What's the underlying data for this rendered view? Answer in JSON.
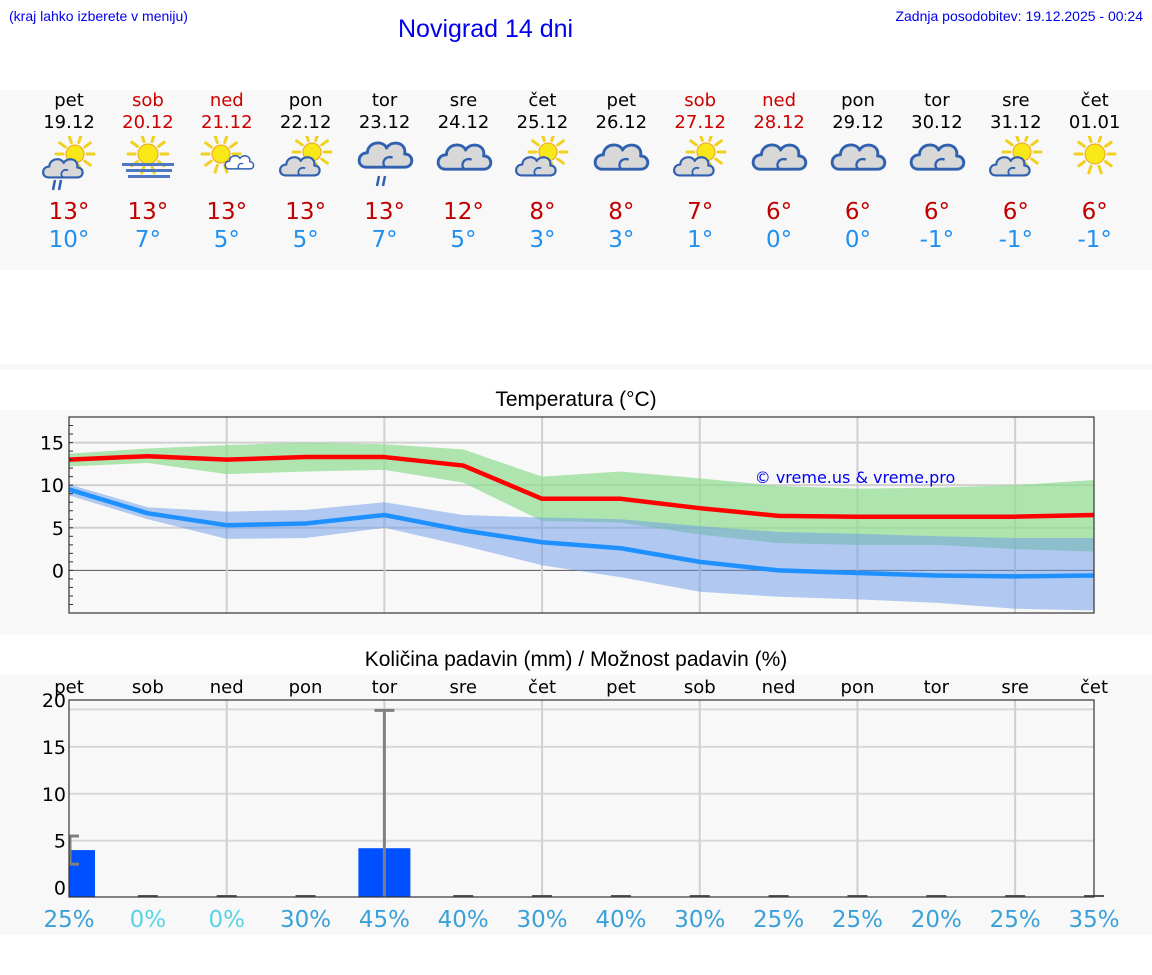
{
  "header": {
    "hint": "(kraj lahko izberete v meniju)",
    "title": "Novigrad 14 dni",
    "updated": "Zadnja posodobitev: 19.12.2025 - 00:24"
  },
  "days": [
    {
      "name": "pet",
      "date": "19.12",
      "weekend": false,
      "icon": "sun-cloud-rain-icon",
      "tmax": "13°",
      "tmin": "10°"
    },
    {
      "name": "sob",
      "date": "20.12",
      "weekend": true,
      "icon": "sun-fog-icon",
      "tmax": "13°",
      "tmin": "7°"
    },
    {
      "name": "ned",
      "date": "21.12",
      "weekend": true,
      "icon": "sun-small-cloud-icon",
      "tmax": "13°",
      "tmin": "5°"
    },
    {
      "name": "pon",
      "date": "22.12",
      "weekend": false,
      "icon": "sun-cloud-icon",
      "tmax": "13°",
      "tmin": "5°"
    },
    {
      "name": "tor",
      "date": "23.12",
      "weekend": false,
      "icon": "cloud-rain-icon",
      "tmax": "13°",
      "tmin": "7°"
    },
    {
      "name": "sre",
      "date": "24.12",
      "weekend": false,
      "icon": "cloud-icon",
      "tmax": "12°",
      "tmin": "5°"
    },
    {
      "name": "čet",
      "date": "25.12",
      "weekend": false,
      "icon": "sun-cloud-icon",
      "tmax": "8°",
      "tmin": "3°"
    },
    {
      "name": "pet",
      "date": "26.12",
      "weekend": false,
      "icon": "cloud-icon",
      "tmax": "8°",
      "tmin": "3°"
    },
    {
      "name": "sob",
      "date": "27.12",
      "weekend": true,
      "icon": "sun-cloud-icon",
      "tmax": "7°",
      "tmin": "1°"
    },
    {
      "name": "ned",
      "date": "28.12",
      "weekend": true,
      "icon": "cloud-icon",
      "tmax": "6°",
      "tmin": "0°"
    },
    {
      "name": "pon",
      "date": "29.12",
      "weekend": false,
      "icon": "cloud-icon",
      "tmax": "6°",
      "tmin": "0°"
    },
    {
      "name": "tor",
      "date": "30.12",
      "weekend": false,
      "icon": "cloud-icon",
      "tmax": "6°",
      "tmin": "-1°"
    },
    {
      "name": "sre",
      "date": "31.12",
      "weekend": false,
      "icon": "sun-cloud-icon",
      "tmax": "6°",
      "tmin": "-1°"
    },
    {
      "name": "čet",
      "date": "01.01",
      "weekend": false,
      "icon": "sun-icon",
      "tmax": "6°",
      "tmin": "-1°"
    }
  ],
  "colors": {
    "weekend": "#cc0000",
    "tmax": "#c00000",
    "tmin": "#2090f0",
    "max_line": "#ff0000",
    "min_line": "#1e90ff",
    "max_band": "#aee8ae",
    "min_band": "#b0c8f0",
    "precip_bar": "#0050ff",
    "precip_error": "#808080",
    "percent_low": "#5ad2e6",
    "percent": "#3aa0d8",
    "watermark": "#0000ee"
  },
  "chart_data": [
    {
      "type": "line",
      "title": "Temperatura (°C)",
      "xlabel": "",
      "ylabel": "",
      "ylim": [
        -5,
        18
      ],
      "yticks": [
        0,
        5,
        10,
        15
      ],
      "grid": true,
      "watermark": "© vreme.us & vreme.pro",
      "x": [
        "19.12",
        "20.12",
        "21.12",
        "22.12",
        "23.12",
        "24.12",
        "25.12",
        "26.12",
        "27.12",
        "28.12",
        "29.12",
        "30.12",
        "31.12",
        "01.01"
      ],
      "series": [
        {
          "name": "max",
          "values": [
            13.0,
            13.4,
            13.0,
            13.3,
            13.3,
            12.3,
            8.4,
            8.4,
            7.3,
            6.4,
            6.3,
            6.3,
            6.3,
            6.5
          ]
        },
        {
          "name": "max_upper",
          "values": [
            13.7,
            14.3,
            14.7,
            15.0,
            14.8,
            14.2,
            11.0,
            11.6,
            10.8,
            9.9,
            9.6,
            9.7,
            10.0,
            10.6
          ]
        },
        {
          "name": "max_lower",
          "values": [
            12.2,
            12.6,
            11.3,
            11.6,
            11.8,
            10.3,
            5.8,
            5.6,
            4.2,
            3.2,
            3.0,
            3.0,
            2.5,
            2.2
          ]
        },
        {
          "name": "min",
          "values": [
            9.5,
            6.7,
            5.3,
            5.5,
            6.5,
            4.7,
            3.3,
            2.6,
            1.0,
            0.0,
            -0.3,
            -0.6,
            -0.7,
            -0.6
          ]
        },
        {
          "name": "min_upper",
          "values": [
            10.1,
            7.4,
            6.9,
            7.1,
            8.0,
            6.5,
            6.2,
            6.0,
            5.2,
            4.5,
            4.3,
            4.0,
            3.8,
            3.8
          ]
        },
        {
          "name": "min_lower",
          "values": [
            8.8,
            6.0,
            3.7,
            3.8,
            5.0,
            2.9,
            0.6,
            -0.8,
            -2.5,
            -3.1,
            -3.4,
            -3.8,
            -4.5,
            -4.7
          ]
        }
      ]
    },
    {
      "type": "bar",
      "title": "Količina padavin (mm) / Možnost padavin (%)",
      "xlabel": "",
      "ylabel": "",
      "ylim": [
        -1,
        20
      ],
      "yticks": [
        0,
        5,
        10,
        15,
        20
      ],
      "grid": true,
      "categories": [
        "pet",
        "sob",
        "ned",
        "pon",
        "tor",
        "sre",
        "čet",
        "pet",
        "sob",
        "ned",
        "pon",
        "tor",
        "sre",
        "čet"
      ],
      "series": [
        {
          "name": "precipitation_mm",
          "values": [
            4.0,
            0,
            0,
            0,
            4.2,
            0,
            0,
            0,
            0,
            0,
            0,
            0,
            0,
            0
          ]
        },
        {
          "name": "precip_max_mm",
          "values": [
            5.5,
            0,
            0,
            0,
            18.9,
            0,
            0,
            0,
            0,
            0,
            0,
            0,
            0,
            0
          ]
        },
        {
          "name": "precip_min_mm",
          "values": [
            2.5,
            0,
            0,
            0,
            0,
            0,
            0,
            0,
            0,
            0,
            0,
            0,
            0,
            0
          ]
        },
        {
          "name": "probability_pct",
          "values": [
            25,
            0,
            0,
            30,
            45,
            40,
            30,
            40,
            30,
            25,
            25,
            20,
            25,
            35
          ]
        }
      ],
      "percent_labels": [
        "25%",
        "0%",
        "0%",
        "30%",
        "45%",
        "40%",
        "30%",
        "40%",
        "30%",
        "25%",
        "25%",
        "20%",
        "25%",
        "35%"
      ]
    }
  ]
}
